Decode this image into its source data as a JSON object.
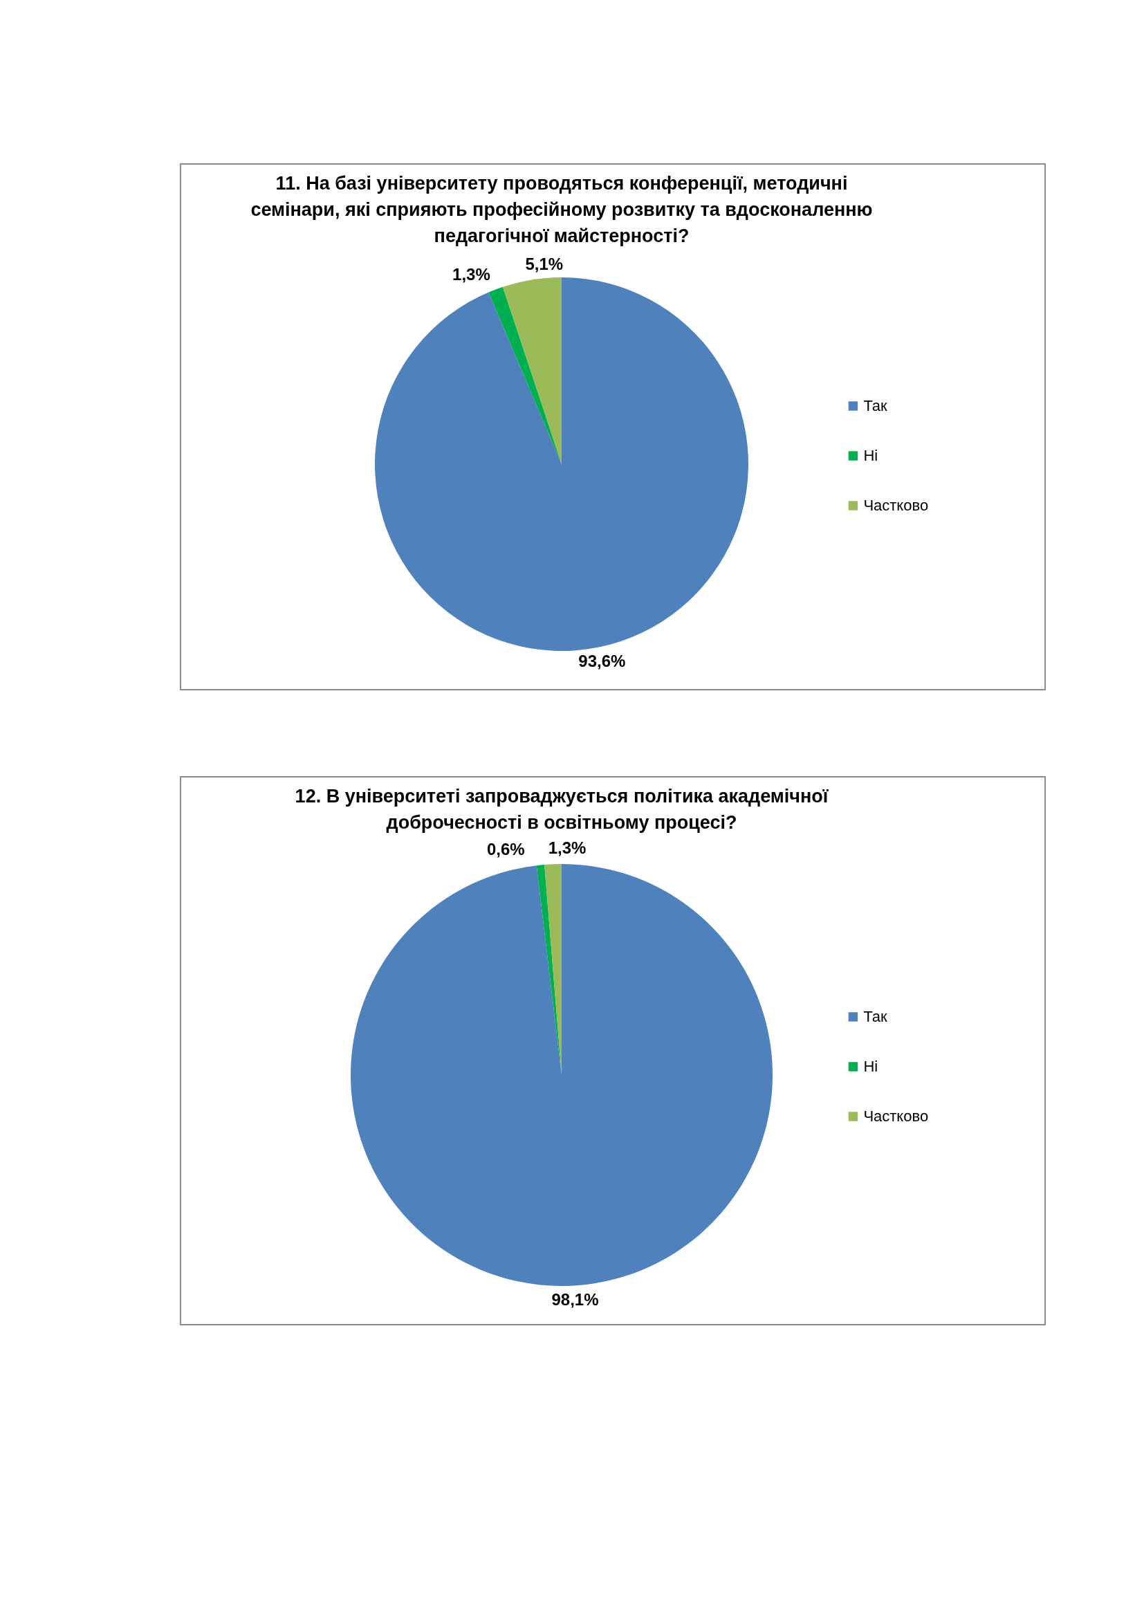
{
  "chart_data": [
    {
      "type": "pie",
      "title": "11. На базі університету проводяться конференції, методичні семінари, які сприяють професійному розвитку та вдосконаленню педагогічної майстерності?",
      "categories": [
        "Так",
        "Ні",
        "Частково"
      ],
      "values": [
        93.6,
        1.3,
        5.1
      ],
      "colors": [
        "#4f81bd",
        "#00b050",
        "#9bbb59"
      ],
      "value_labels": [
        "93,6%",
        "1,3%",
        "5,1%"
      ],
      "legend": "right"
    },
    {
      "type": "pie",
      "title": "12. В університеті запроваджується політика академічної доброчесності в освітньому процесі?",
      "categories": [
        "Так",
        "Ні",
        "Частково"
      ],
      "values": [
        98.1,
        0.6,
        1.3
      ],
      "colors": [
        "#4f81bd",
        "#00b050",
        "#9bbb59"
      ],
      "value_labels": [
        "98,1%",
        "0,6%",
        "1,3%"
      ],
      "legend": "right"
    }
  ]
}
